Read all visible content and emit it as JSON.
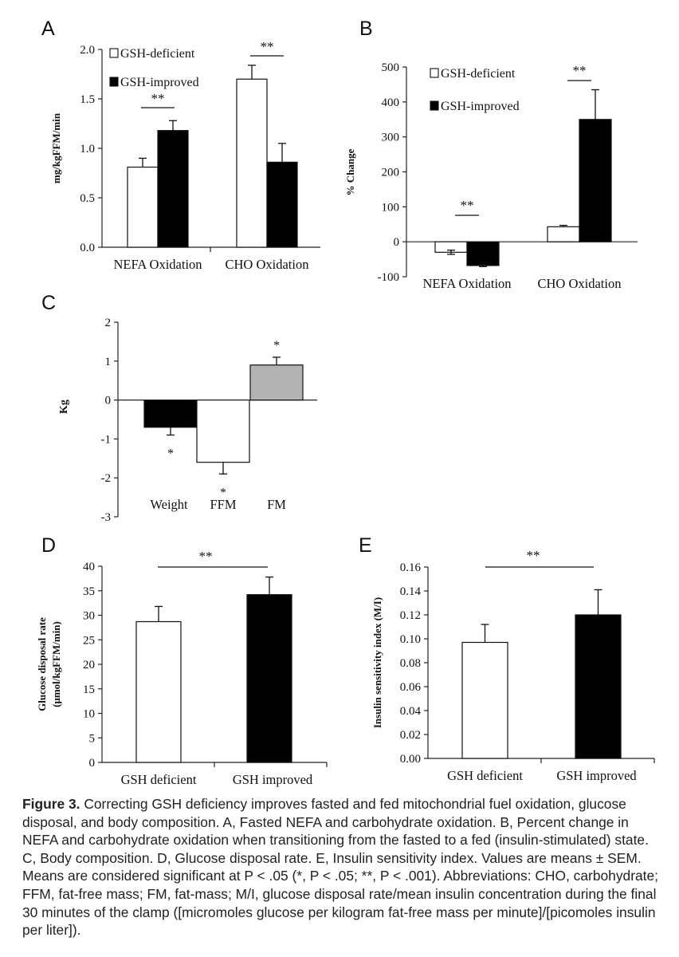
{
  "chart_data": [
    {
      "panel": "A",
      "type": "bar",
      "ylabel": "mg/kgFFM/min",
      "categories": [
        "NEFA Oxidation",
        "CHO Oxidation"
      ],
      "series": [
        {
          "name": "GSH-deficient",
          "values": [
            0.81,
            1.7
          ],
          "errors": [
            0.09,
            0.14
          ],
          "color": "#ffffff"
        },
        {
          "name": "GSH-improved",
          "values": [
            1.18,
            0.86
          ],
          "errors": [
            0.1,
            0.19
          ],
          "color": "#000000"
        }
      ],
      "ylim": [
        0,
        2.0
      ],
      "yticks": [
        "0.0",
        "0.5",
        "1.0",
        "1.5",
        "2.0"
      ],
      "significance": [
        "**",
        "**"
      ],
      "legend": "top-left"
    },
    {
      "panel": "B",
      "type": "bar",
      "ylabel": "% Change",
      "categories": [
        "NEFA Oxidation",
        "CHO Oxidation"
      ],
      "series": [
        {
          "name": "GSH-deficient",
          "values": [
            -30,
            43
          ],
          "errors": [
            6,
            4
          ],
          "color": "#ffffff"
        },
        {
          "name": "GSH-improved",
          "values": [
            -68,
            350
          ],
          "errors": [
            3,
            85
          ],
          "color": "#000000"
        }
      ],
      "ylim": [
        -100,
        500
      ],
      "yticks": [
        "-100",
        "0",
        "100",
        "200",
        "300",
        "400",
        "500"
      ],
      "significance": [
        "**",
        "**"
      ],
      "legend": "top-left"
    },
    {
      "panel": "C",
      "type": "bar",
      "ylabel": "Kg",
      "categories": [
        "Weight",
        "FFM",
        "FM"
      ],
      "values": [
        -0.7,
        -1.6,
        0.9
      ],
      "errors": [
        0.2,
        0.3,
        0.2
      ],
      "colors": [
        "#000000",
        "#ffffff",
        "#b3b3b3"
      ],
      "ylim": [
        -3,
        2
      ],
      "yticks": [
        "-3",
        "-2",
        "-1",
        "0",
        "1",
        "2"
      ],
      "significance": [
        "*",
        "*",
        "*"
      ]
    },
    {
      "panel": "D",
      "type": "bar",
      "ylabel_lines": [
        "Glucose disposal rate",
        "(μmol/kgFFM/min)"
      ],
      "categories": [
        "GSH deficient",
        "GSH improved"
      ],
      "values": [
        28.7,
        34.2
      ],
      "errors": [
        3.1,
        3.6
      ],
      "colors": [
        "#ffffff",
        "#000000"
      ],
      "ylim": [
        0,
        40
      ],
      "yticks": [
        "0",
        "5",
        "10",
        "15",
        "20",
        "25",
        "30",
        "35",
        "40"
      ],
      "significance": "**"
    },
    {
      "panel": "E",
      "type": "bar",
      "ylabel": "Insulin sensitivity index (M/I)",
      "categories": [
        "GSH deficient",
        "GSH improved"
      ],
      "values": [
        0.097,
        0.12
      ],
      "errors": [
        0.015,
        0.021
      ],
      "colors": [
        "#ffffff",
        "#000000"
      ],
      "ylim": [
        0,
        0.16
      ],
      "yticks": [
        "0.00",
        "0.02",
        "0.04",
        "0.06",
        "0.08",
        "0.10",
        "0.12",
        "0.14",
        "0.16"
      ],
      "significance": "**"
    }
  ],
  "caption": {
    "label": "Figure 3.",
    "text": " Correcting GSH deficiency improves fasted and fed mitochondrial fuel oxidation, glucose disposal, and body composition. A, Fasted NEFA and carbohydrate oxidation. B, Percent change in NEFA and carbohydrate oxidation when transitioning from the fasted to a fed (insulin-stimulated) state. C, Body composition. D, Glucose disposal rate. E, Insulin sensitivity index. Values are means ± SEM. Means are considered significant at P < .05 (*, P < .05; **, P < .001). Abbreviations: CHO, carbohydrate; FFM, fat-free mass; FM, fat-mass; M/I, glucose disposal rate/mean insulin concentration during the final 30 minutes of the clamp ([micromoles glucose per kilogram fat-free mass per minute]/[picomoles insulin per liter])."
  }
}
